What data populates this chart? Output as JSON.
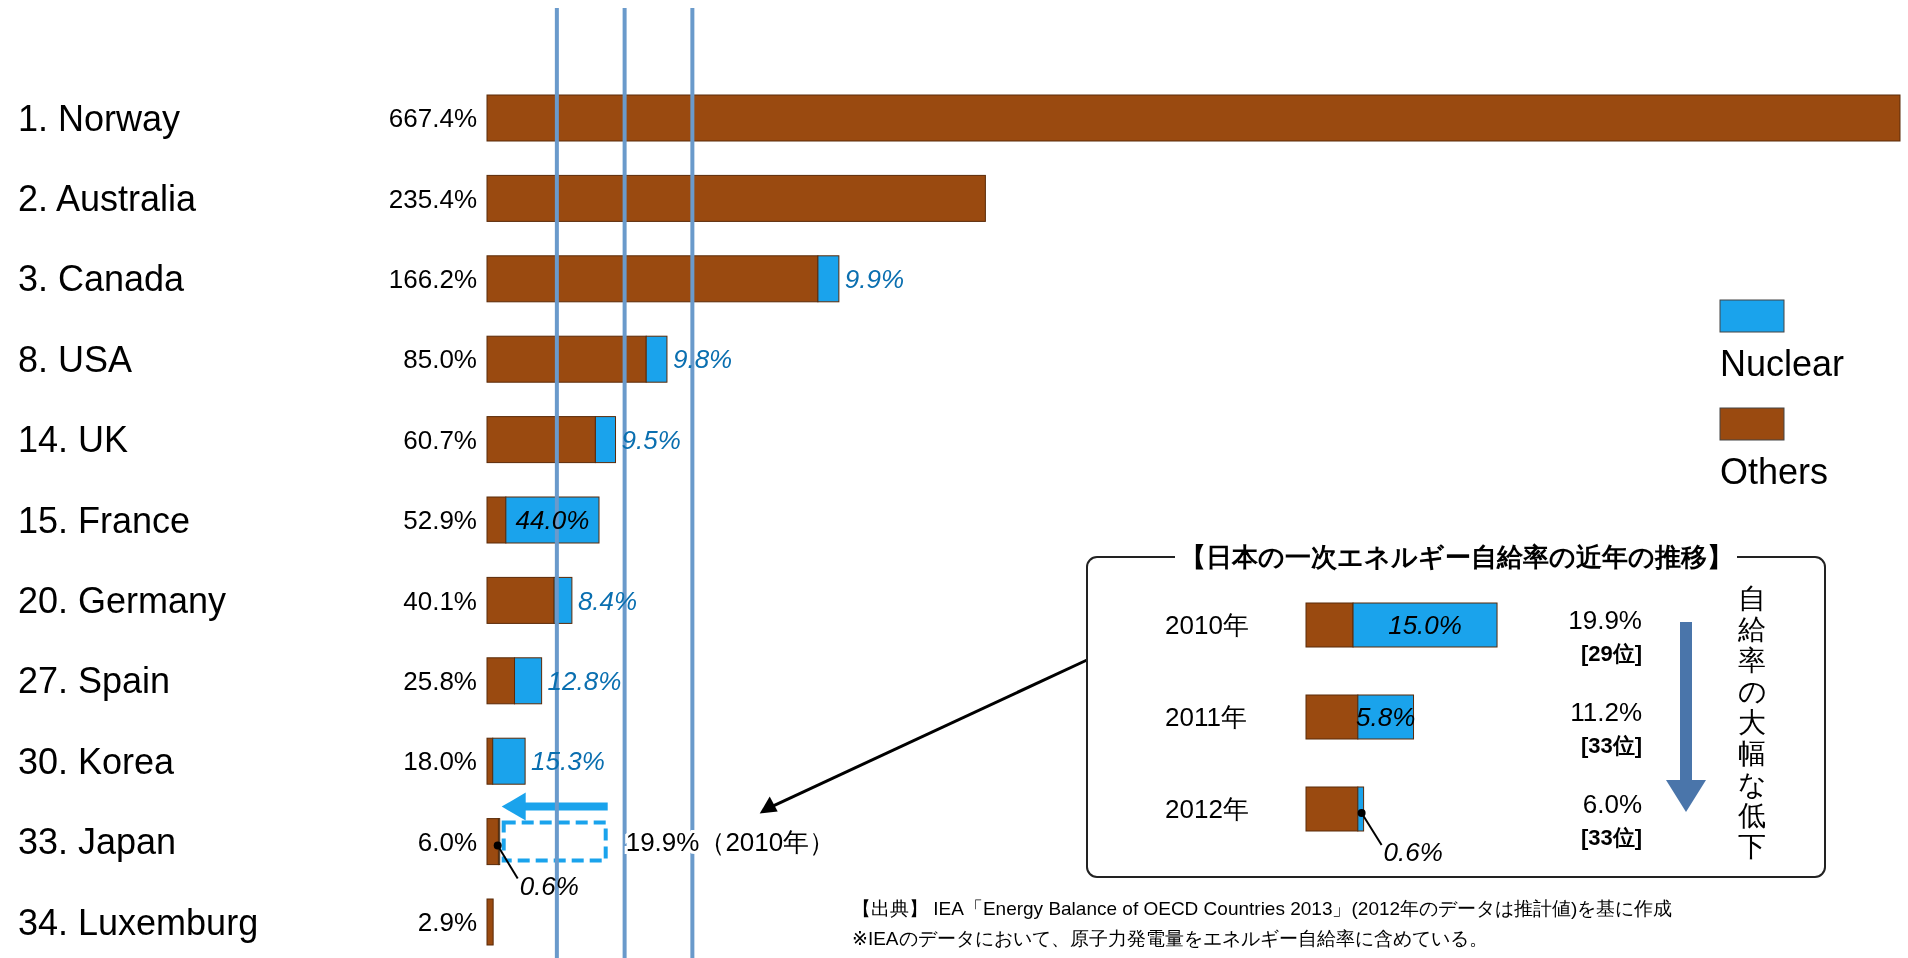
{
  "chart_data": [
    {
      "type": "bar",
      "orientation": "horizontal",
      "stacked": true,
      "categories": [
        "1. Norway",
        "2. Australia",
        "3. Canada",
        "8. USA",
        "14. UK",
        "15. France",
        "20. Germany",
        "27. Spain",
        "30. Korea",
        "33.   Japan",
        "34.   Luxemburg"
      ],
      "series": [
        {
          "name": "Others",
          "color": "#9a4a10",
          "values": [
            667.4,
            235.4,
            156.3,
            75.2,
            51.2,
            8.9,
            31.7,
            13.0,
            2.7,
            5.4,
            2.9
          ]
        },
        {
          "name": "Nuclear",
          "color": "#1aa3ec",
          "values": [
            null,
            null,
            9.9,
            9.8,
            9.5,
            44.0,
            8.4,
            12.8,
            15.3,
            0.6,
            null
          ],
          "value_labels": [
            null,
            null,
            "9.9%",
            "9.8%",
            "9.5%",
            "44.0%",
            "8.4%",
            "12.8%",
            "15.3%",
            "0.6%",
            null
          ]
        }
      ],
      "totals": [
        "667.4%",
        "235.4%",
        "166.2%",
        "85.0%",
        "60.7%",
        "52.9%",
        "40.1%",
        "25.8%",
        "18.0%",
        "6.0%",
        "2.9%"
      ],
      "legend": "right",
      "ref_lines": [
        {
          "axis": "x",
          "value": 33,
          "color": "#6a9acb"
        },
        {
          "axis": "x",
          "value": 65,
          "color": "#6a9acb"
        },
        {
          "axis": "x",
          "value": 97,
          "color": "#6a9acb"
        }
      ],
      "annotations": [
        "19.9%（2010年）",
        "【出典】 IEA「Energy Balance of OECD Countries 2013」(2012年のデータは推計値)を基に作成",
        "※IEAのデータにおいて、原子力発電量をエネルギー自給率に含めている。"
      ]
    },
    {
      "type": "bar",
      "orientation": "horizontal",
      "stacked": true,
      "title": "【日本の一次エネルギー自給率の近年の推移】",
      "categories": [
        "2010年",
        "2011年",
        "2012年"
      ],
      "series": [
        {
          "color": "#9a4a10",
          "values": [
            4.9,
            5.4,
            5.4
          ]
        },
        {
          "color": "#1aa3ec",
          "values": [
            15.0,
            5.8,
            0.6
          ],
          "value_labels": [
            "15.0%",
            "5.8%",
            "0.6%"
          ]
        }
      ],
      "annotations": [
        "19.9%",
        "[29位]",
        "11.2%",
        "[33位]",
        "6.0%",
        "[33位]",
        "自給率の大幅な低下"
      ]
    }
  ]
}
